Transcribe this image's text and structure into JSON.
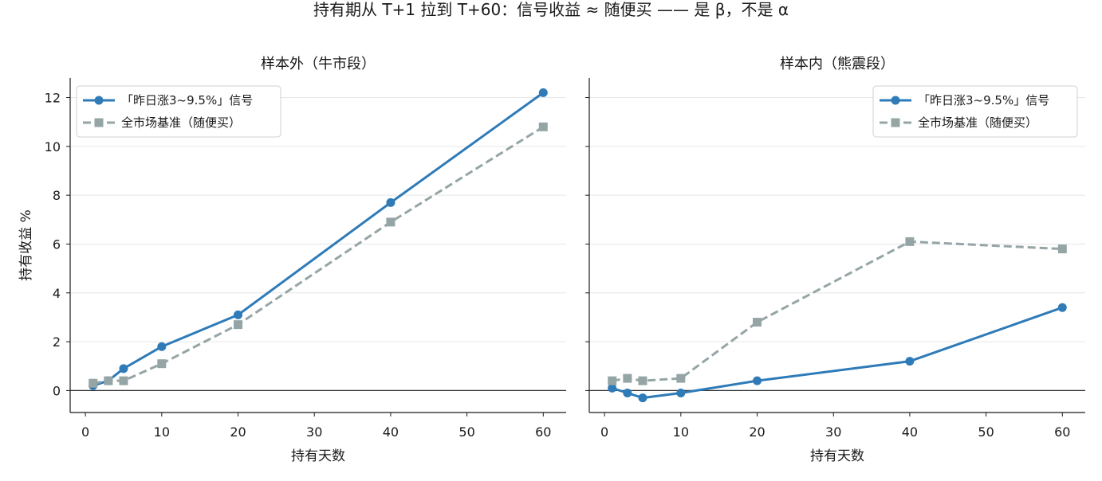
{
  "figure": {
    "suptitle": "持有期从 T+1 拉到 T+60：信号收益 ≈ 随便买 —— 是 β，不是 α"
  },
  "colors": {
    "signal": "#2e7bb8",
    "baseline": "#95a5a6",
    "zero_line": "#333333",
    "grid": "#e6e6e6",
    "axis": "#1a1a1a"
  },
  "chart_data": [
    {
      "type": "line",
      "title": "样本外（牛市段）",
      "xlabel": "持有天数",
      "ylabel": "持有收益 %",
      "xlim": [
        -2,
        63
      ],
      "ylim": [
        -0.9,
        12.8
      ],
      "xticks": [
        0,
        10,
        20,
        30,
        40,
        50,
        60
      ],
      "yticks": [
        0,
        2,
        4,
        6,
        8,
        10,
        12
      ],
      "grid": "horizontal",
      "legend_loc": "top-left",
      "x": [
        1,
        3,
        5,
        10,
        20,
        40,
        60
      ],
      "series": [
        {
          "name": "「昨日涨3~9.5%」信号",
          "style": "solid",
          "marker": "circle",
          "values": [
            0.2,
            0.4,
            0.9,
            1.8,
            3.1,
            7.7,
            12.2
          ]
        },
        {
          "name": "全市场基准（随便买）",
          "style": "dashed",
          "marker": "square",
          "values": [
            0.3,
            0.4,
            0.4,
            1.1,
            2.7,
            6.9,
            10.8
          ]
        }
      ]
    },
    {
      "type": "line",
      "title": "样本内（熊震段）",
      "xlabel": "持有天数",
      "ylabel": "",
      "xlim": [
        -2,
        63
      ],
      "ylim": [
        -0.9,
        12.8
      ],
      "xticks": [
        0,
        10,
        20,
        30,
        40,
        50,
        60
      ],
      "yticks": [
        0,
        2,
        4,
        6,
        8,
        10,
        12
      ],
      "grid": "horizontal",
      "legend_loc": "top-right",
      "x": [
        1,
        3,
        5,
        10,
        20,
        40,
        60
      ],
      "series": [
        {
          "name": "「昨日涨3~9.5%」信号",
          "style": "solid",
          "marker": "circle",
          "values": [
            0.1,
            -0.1,
            -0.3,
            -0.1,
            0.4,
            1.2,
            3.4
          ]
        },
        {
          "name": "全市场基准（随便买）",
          "style": "dashed",
          "marker": "square",
          "values": [
            0.4,
            0.5,
            0.4,
            0.5,
            2.8,
            6.1,
            5.8
          ]
        }
      ]
    }
  ]
}
